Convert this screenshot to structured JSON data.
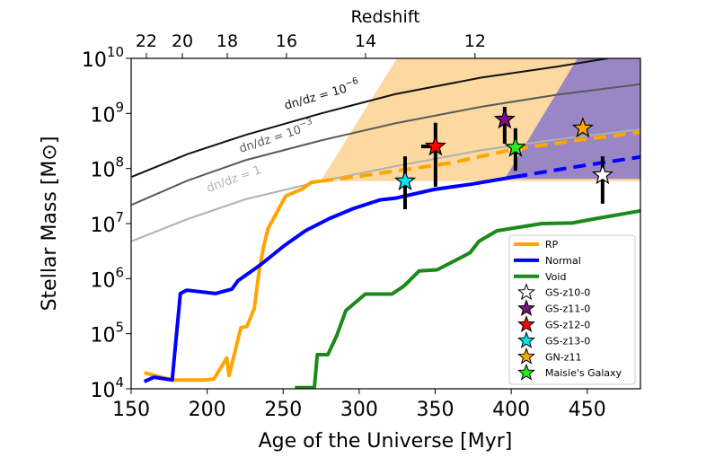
{
  "chart_data": {
    "type": "line",
    "title": "",
    "xlabel": "Age of the Universe [Myr]",
    "ylabel": "Stellar Mass [M⊙]",
    "top_xlabel": "Redshift",
    "xlim": [
      150,
      485
    ],
    "ylim_log10": [
      4,
      10
    ],
    "yscale": "log",
    "grid": false,
    "legend_position": "lower-right",
    "x_ticks": [
      150,
      200,
      250,
      300,
      350,
      400,
      450
    ],
    "x_tick_labels": [
      "150",
      "200",
      "250",
      "300",
      "350",
      "400",
      "450"
    ],
    "y_ticks_log10": [
      4,
      5,
      6,
      7,
      8,
      9,
      10
    ],
    "y_tick_base": "10",
    "y_tick_exponents": [
      "4",
      "5",
      "6",
      "7",
      "8",
      "9",
      "10"
    ],
    "top_ticks": [
      {
        "label": "22",
        "age": 160.0
      },
      {
        "label": "20",
        "age": 183.7
      },
      {
        "label": "18",
        "age": 213.2
      },
      {
        "label": "16",
        "age": 252.2
      },
      {
        "label": "14",
        "age": 304.2
      },
      {
        "label": "12",
        "age": 376.2
      }
    ],
    "shaded_regions": [
      {
        "name": "rp-region",
        "color": "#fbd9a0",
        "points": [
          [
            274.6,
            7.77
          ],
          [
            324.8,
            10
          ],
          [
            485,
            10
          ],
          [
            485,
            7.77
          ]
        ]
      },
      {
        "name": "normal-region",
        "color": "#9a86c4",
        "points": [
          [
            395.7,
            7.81
          ],
          [
            443.6,
            10
          ],
          [
            485,
            10
          ],
          [
            485,
            7.81
          ]
        ]
      }
    ],
    "dndz_curves": [
      {
        "name": "dn/dz = 10^-6",
        "label_base": "dn/dz = 10",
        "label_exp": "−6",
        "color": "#111111",
        "x": [
          150.4,
          187,
          225.2,
          275,
          323.6,
          380,
          430,
          463.6
        ],
        "log_y": [
          7.85,
          8.26,
          8.61,
          9.0,
          9.35,
          9.65,
          9.85,
          10.0
        ]
      },
      {
        "name": "dn/dz = 10^-3",
        "label_base": "dn/dz = 10",
        "label_exp": "−3",
        "color": "#5a5a5a",
        "x": [
          150.4,
          187,
          225,
          275,
          323.6,
          380,
          430,
          485
        ],
        "log_y": [
          7.34,
          7.78,
          8.15,
          8.51,
          8.82,
          9.12,
          9.34,
          9.53
        ]
      },
      {
        "name": "dn/dz = 1",
        "label_base": "dn/dz = 1",
        "label_exp": "",
        "color": "#b0b0b0",
        "x": [
          150.4,
          187,
          225,
          275,
          323.6,
          380,
          430,
          485
        ],
        "log_y": [
          6.68,
          7.08,
          7.44,
          7.77,
          8.04,
          8.33,
          8.53,
          8.71
        ]
      }
    ],
    "series": [
      {
        "name": "RP",
        "color": "#ffa500",
        "solid": {
          "x": [
            158.7,
            177,
            199.6,
            204.5,
            212.9,
            214.4,
            222.2,
            226.1,
            231,
            234,
            236.9,
            239.9,
            246.8,
            251.7,
            262.6,
            268.5,
            274.6
          ],
          "log_y": [
            4.29,
            4.16,
            4.16,
            4.18,
            4.56,
            4.24,
            5.11,
            5.13,
            5.46,
            6.11,
            6.55,
            6.9,
            7.25,
            7.5,
            7.63,
            7.75,
            7.77
          ]
        },
        "dashed": {
          "x": [
            274.6,
            300,
            330,
            360,
            402,
            440,
            485
          ],
          "log_y": [
            7.77,
            7.86,
            7.98,
            8.1,
            8.35,
            8.5,
            8.66
          ]
        }
      },
      {
        "name": "Normal",
        "color": "#0000ff",
        "solid": {
          "x": [
            158.7,
            165,
            177,
            182.4,
            186.6,
            205.5,
            216.3,
            220.2,
            235,
            250.8,
            264.6,
            280.3,
            296,
            313.7,
            323.6,
            349.2,
            375,
            402.4
          ],
          "log_y": [
            4.13,
            4.21,
            4.16,
            5.73,
            5.79,
            5.73,
            5.81,
            5.96,
            6.25,
            6.6,
            6.87,
            7.09,
            7.27,
            7.43,
            7.46,
            7.62,
            7.72,
            7.85
          ]
        },
        "dashed": {
          "x": [
            402.4,
            440,
            485
          ],
          "log_y": [
            7.85,
            8.02,
            8.21
          ]
        }
      },
      {
        "name": "Void",
        "color": "#1a8a1a",
        "solid": {
          "x": [
            257.7,
            270.5,
            272.4,
            279.4,
            285.3,
            291.2,
            304,
            321.6,
            329.6,
            339.5,
            351.3,
            361.1,
            372.9,
            378.8,
            390.7,
            420.2,
            439.9,
            455.6,
            485
          ],
          "log_y": [
            4.02,
            4.02,
            4.62,
            4.62,
            4.97,
            5.42,
            5.72,
            5.72,
            5.87,
            6.14,
            6.16,
            6.3,
            6.47,
            6.68,
            6.87,
            7.0,
            7.01,
            7.09,
            7.23
          ]
        }
      }
    ],
    "observations": [
      {
        "name": "GS-z10-0",
        "color": "#ffffff",
        "x": 460.1,
        "log_y": 7.88,
        "err_low": 7.36,
        "err_high": 8.22,
        "x_err_low": null
      },
      {
        "name": "GS-z11-0",
        "color": "#7b0f86",
        "x": 395.7,
        "log_y": 8.89,
        "err_low": 8.45,
        "err_high": 9.12,
        "x_err_low": null
      },
      {
        "name": "GS-z12-0",
        "color": "#ff0000",
        "x": 350.2,
        "log_y": 8.4,
        "err_low": 7.67,
        "err_high": 8.83,
        "x_err_low": 340.8
      },
      {
        "name": "GS-z13-0",
        "color": "#00e5ee",
        "x": 330.2,
        "log_y": 7.77,
        "err_low": 7.26,
        "err_high": 8.22,
        "x_err_low": null
      },
      {
        "name": "GN-z11",
        "color": "#ffa500",
        "x": 447.1,
        "log_y": 8.73,
        "err_low": null,
        "err_high": null,
        "x_err_low": null
      },
      {
        "name": "Maisie's Galaxy",
        "color": "#22ee22",
        "x": 402.8,
        "log_y": 8.38,
        "err_low": 7.96,
        "err_high": 8.73,
        "x_err_low": null
      }
    ],
    "legend": [
      {
        "label": "RP",
        "kind": "line",
        "color": "#ffa500"
      },
      {
        "label": "Normal",
        "kind": "line",
        "color": "#0000ff"
      },
      {
        "label": "Void",
        "kind": "line",
        "color": "#1a8a1a"
      },
      {
        "label": "GS-z10-0",
        "kind": "star",
        "color": "#ffffff"
      },
      {
        "label": "GS-z11-0",
        "kind": "star",
        "color": "#7b0f86"
      },
      {
        "label": "GS-z12-0",
        "kind": "star",
        "color": "#ff0000"
      },
      {
        "label": "GS-z13-0",
        "kind": "star",
        "color": "#00e5ee"
      },
      {
        "label": "GN-z11",
        "kind": "star",
        "color": "#ffa500"
      },
      {
        "label": "Maisie's Galaxy",
        "kind": "star",
        "color": "#22ee22"
      }
    ]
  }
}
